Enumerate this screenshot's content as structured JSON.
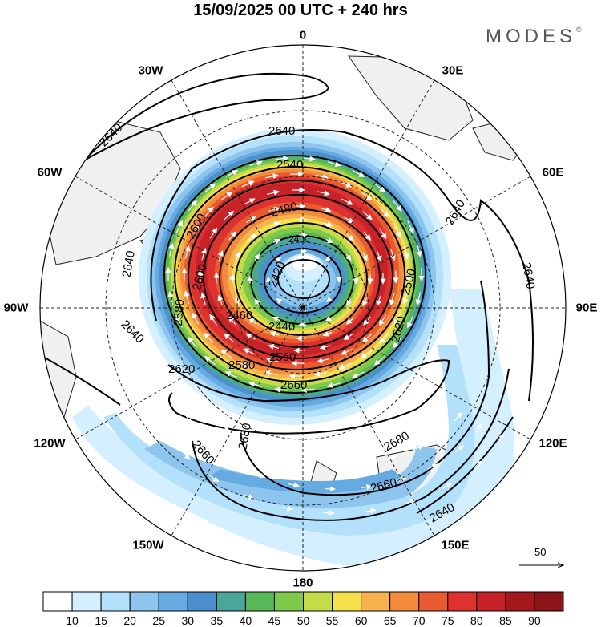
{
  "title": "15/09/2025  00 UTC  + 240 hrs",
  "brand": {
    "name": "MODES",
    "mark": "©"
  },
  "longitude_labels": [
    {
      "id": "0",
      "text": "0"
    },
    {
      "id": "30E",
      "text": "30E"
    },
    {
      "id": "60E",
      "text": "60E"
    },
    {
      "id": "90E",
      "text": "90E"
    },
    {
      "id": "120E",
      "text": "120E"
    },
    {
      "id": "150E",
      "text": "150E"
    },
    {
      "id": "180",
      "text": "180"
    },
    {
      "id": "150W",
      "text": "150W"
    },
    {
      "id": "120W",
      "text": "120W"
    },
    {
      "id": "90W",
      "text": "90W"
    },
    {
      "id": "60W",
      "text": "60W"
    },
    {
      "id": "30W",
      "text": "30W"
    }
  ],
  "contour_labels": [
    "2640",
    "2640",
    "2640",
    "2640",
    "2640",
    "2640",
    "2660",
    "2660",
    "2660",
    "2680",
    "2680",
    "2640",
    "2620",
    "2620",
    "2600",
    "2600",
    "2580",
    "2560",
    "2540",
    "2500",
    "2480",
    "2460",
    "2440",
    "2420",
    "2400",
    "2580"
  ],
  "vector_reference": {
    "value": "50"
  },
  "colorbar": {
    "ticks": [
      "10",
      "15",
      "20",
      "25",
      "30",
      "35",
      "40",
      "45",
      "50",
      "55",
      "60",
      "65",
      "70",
      "75",
      "80",
      "85",
      "90"
    ],
    "colors": [
      "#ffffff",
      "#d4efff",
      "#b3e1fb",
      "#8ec5ee",
      "#66aae2",
      "#4b8fcc",
      "#4aa59a",
      "#58b858",
      "#7ec94a",
      "#c5dc4a",
      "#f5df4c",
      "#f6b24c",
      "#f38a3c",
      "#ea5a2f",
      "#de3230",
      "#c62228",
      "#a5181c",
      "#8a1418"
    ]
  }
}
